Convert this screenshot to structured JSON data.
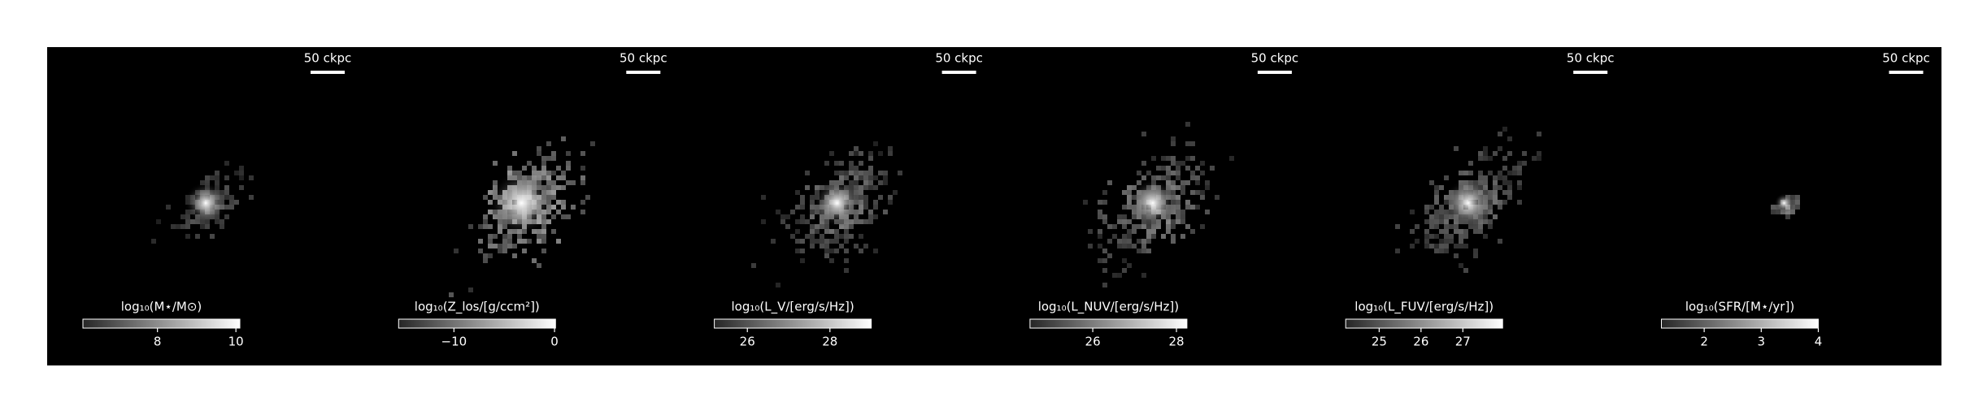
{
  "chart_data": [
    {
      "type": "image",
      "scale_bar": "50 ckpc",
      "colorbar": {
        "label": "log₁₀(M⋆/M⊙)",
        "lim": [
          6.1,
          10.1
        ],
        "ticks": [
          8,
          10
        ]
      }
    },
    {
      "type": "image",
      "scale_bar": "50 ckpc",
      "colorbar": {
        "label": "log₁₀(Z_los/[g/ccm²])",
        "lim": [
          -15.5,
          0.1
        ],
        "ticks": [
          {
            "value": -10,
            "label": "−10"
          },
          0
        ]
      }
    },
    {
      "type": "image",
      "scale_bar": "50 ckpc",
      "colorbar": {
        "label": "log₁₀(L_V/[erg/s/Hz])",
        "lim": [
          25.2,
          29.0
        ],
        "ticks": [
          26,
          28
        ]
      }
    },
    {
      "type": "image",
      "scale_bar": "50 ckpc",
      "colorbar": {
        "label": "log₁₀(L_NUV/[erg/s/Hz])",
        "lim": [
          24.5,
          28.25
        ],
        "ticks": [
          26,
          28
        ]
      }
    },
    {
      "type": "image",
      "scale_bar": "50 ckpc",
      "colorbar": {
        "label": "log₁₀(L_FUV/[erg/s/Hz])",
        "lim": [
          24.2,
          27.95
        ],
        "ticks": [
          25,
          26,
          27
        ]
      }
    },
    {
      "type": "image",
      "scale_bar": "50 ckpc",
      "colorbar": {
        "label": "log₁₀(SFR/[M⋆/yr])",
        "lim": [
          1.25,
          4.0
        ],
        "ticks": [
          2,
          3,
          4
        ]
      }
    }
  ]
}
